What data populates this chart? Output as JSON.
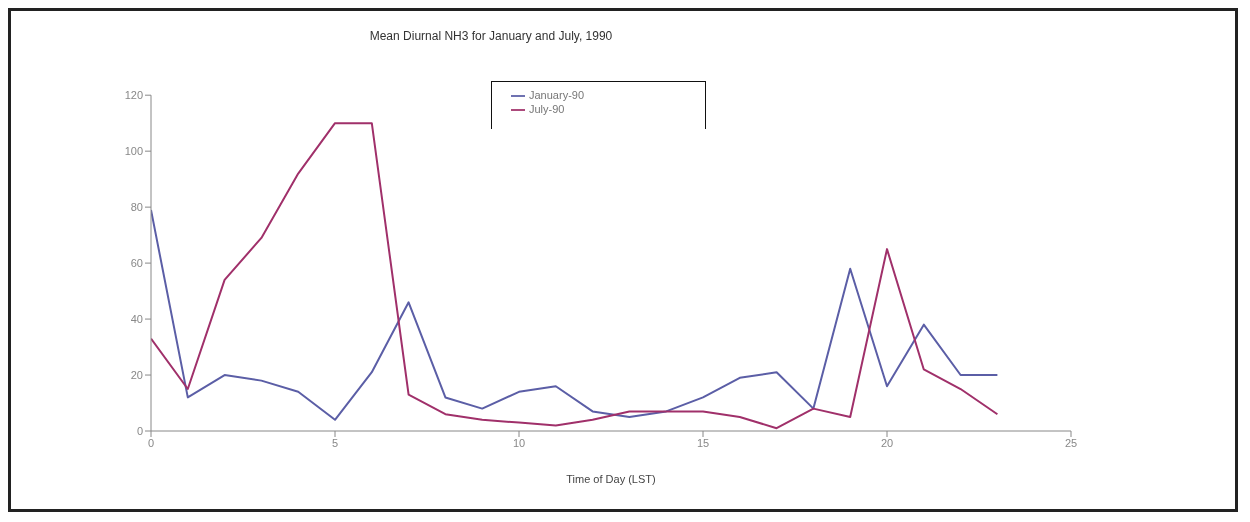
{
  "chart_data": {
    "type": "line",
    "title": "Mean Diurnal NH3 for January and July, 1990",
    "xlabel": "Time of Day (LST)",
    "x": [
      0,
      1,
      2,
      3,
      4,
      5,
      6,
      7,
      8,
      9,
      10,
      11,
      12,
      13,
      14,
      15,
      16,
      17,
      18,
      19,
      20,
      21,
      22,
      23
    ],
    "series": [
      {
        "name": "January-90",
        "color": "#5b5ea6",
        "values": [
          79,
          12,
          20,
          18,
          14,
          4,
          21,
          46,
          12,
          8,
          14,
          16,
          7,
          5,
          7,
          12,
          19,
          21,
          8,
          58,
          16,
          38,
          20,
          20
        ]
      },
      {
        "name": "July-90",
        "color": "#a0306a",
        "values": [
          33,
          15,
          54,
          69,
          92,
          110,
          110,
          13,
          6,
          4,
          3,
          2,
          4,
          7,
          7,
          7,
          5,
          1,
          8,
          5,
          65,
          22,
          15,
          6
        ]
      }
    ],
    "xlim": [
      0,
      25
    ],
    "xticks": [
      0,
      5,
      10,
      15,
      20,
      25
    ],
    "ylim": [
      0,
      120
    ],
    "yticks": [
      0,
      20,
      40,
      60,
      80,
      100,
      120
    ],
    "grid": false,
    "legend": "top",
    "marker": "none",
    "line_style": "solid"
  }
}
